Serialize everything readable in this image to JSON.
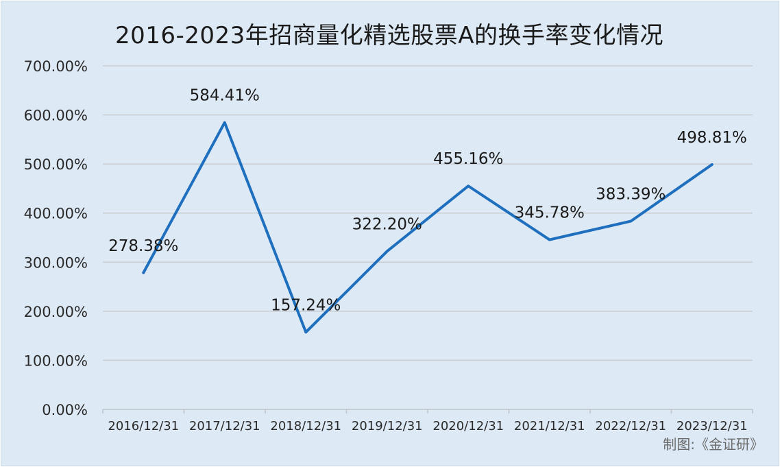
{
  "chart_data": {
    "type": "line",
    "title": "2016-2023年招商量化精选股票A的换手率变化情况",
    "categories": [
      "2016/12/31",
      "2017/12/31",
      "2018/12/31",
      "2019/12/31",
      "2020/12/31",
      "2021/12/31",
      "2022/12/31",
      "2023/12/31"
    ],
    "series": [
      {
        "values": [
          278.38,
          584.41,
          157.24,
          322.2,
          455.16,
          345.78,
          383.39,
          498.81
        ],
        "labels": [
          "278.38%",
          "584.41%",
          "157.24%",
          "322.20%",
          "455.16%",
          "345.78%",
          "383.39%",
          "498.81%"
        ],
        "color": "#1f6fbf"
      }
    ],
    "ylim": [
      0,
      700
    ],
    "yticks": [
      0,
      100,
      200,
      300,
      400,
      500,
      600,
      700
    ],
    "ytick_labels": [
      "0.00%",
      "100.00%",
      "200.00%",
      "300.00%",
      "400.00%",
      "500.00%",
      "600.00%",
      "700.00%"
    ],
    "grid": true,
    "legend": "none"
  },
  "credit": "制图:《金证研》"
}
